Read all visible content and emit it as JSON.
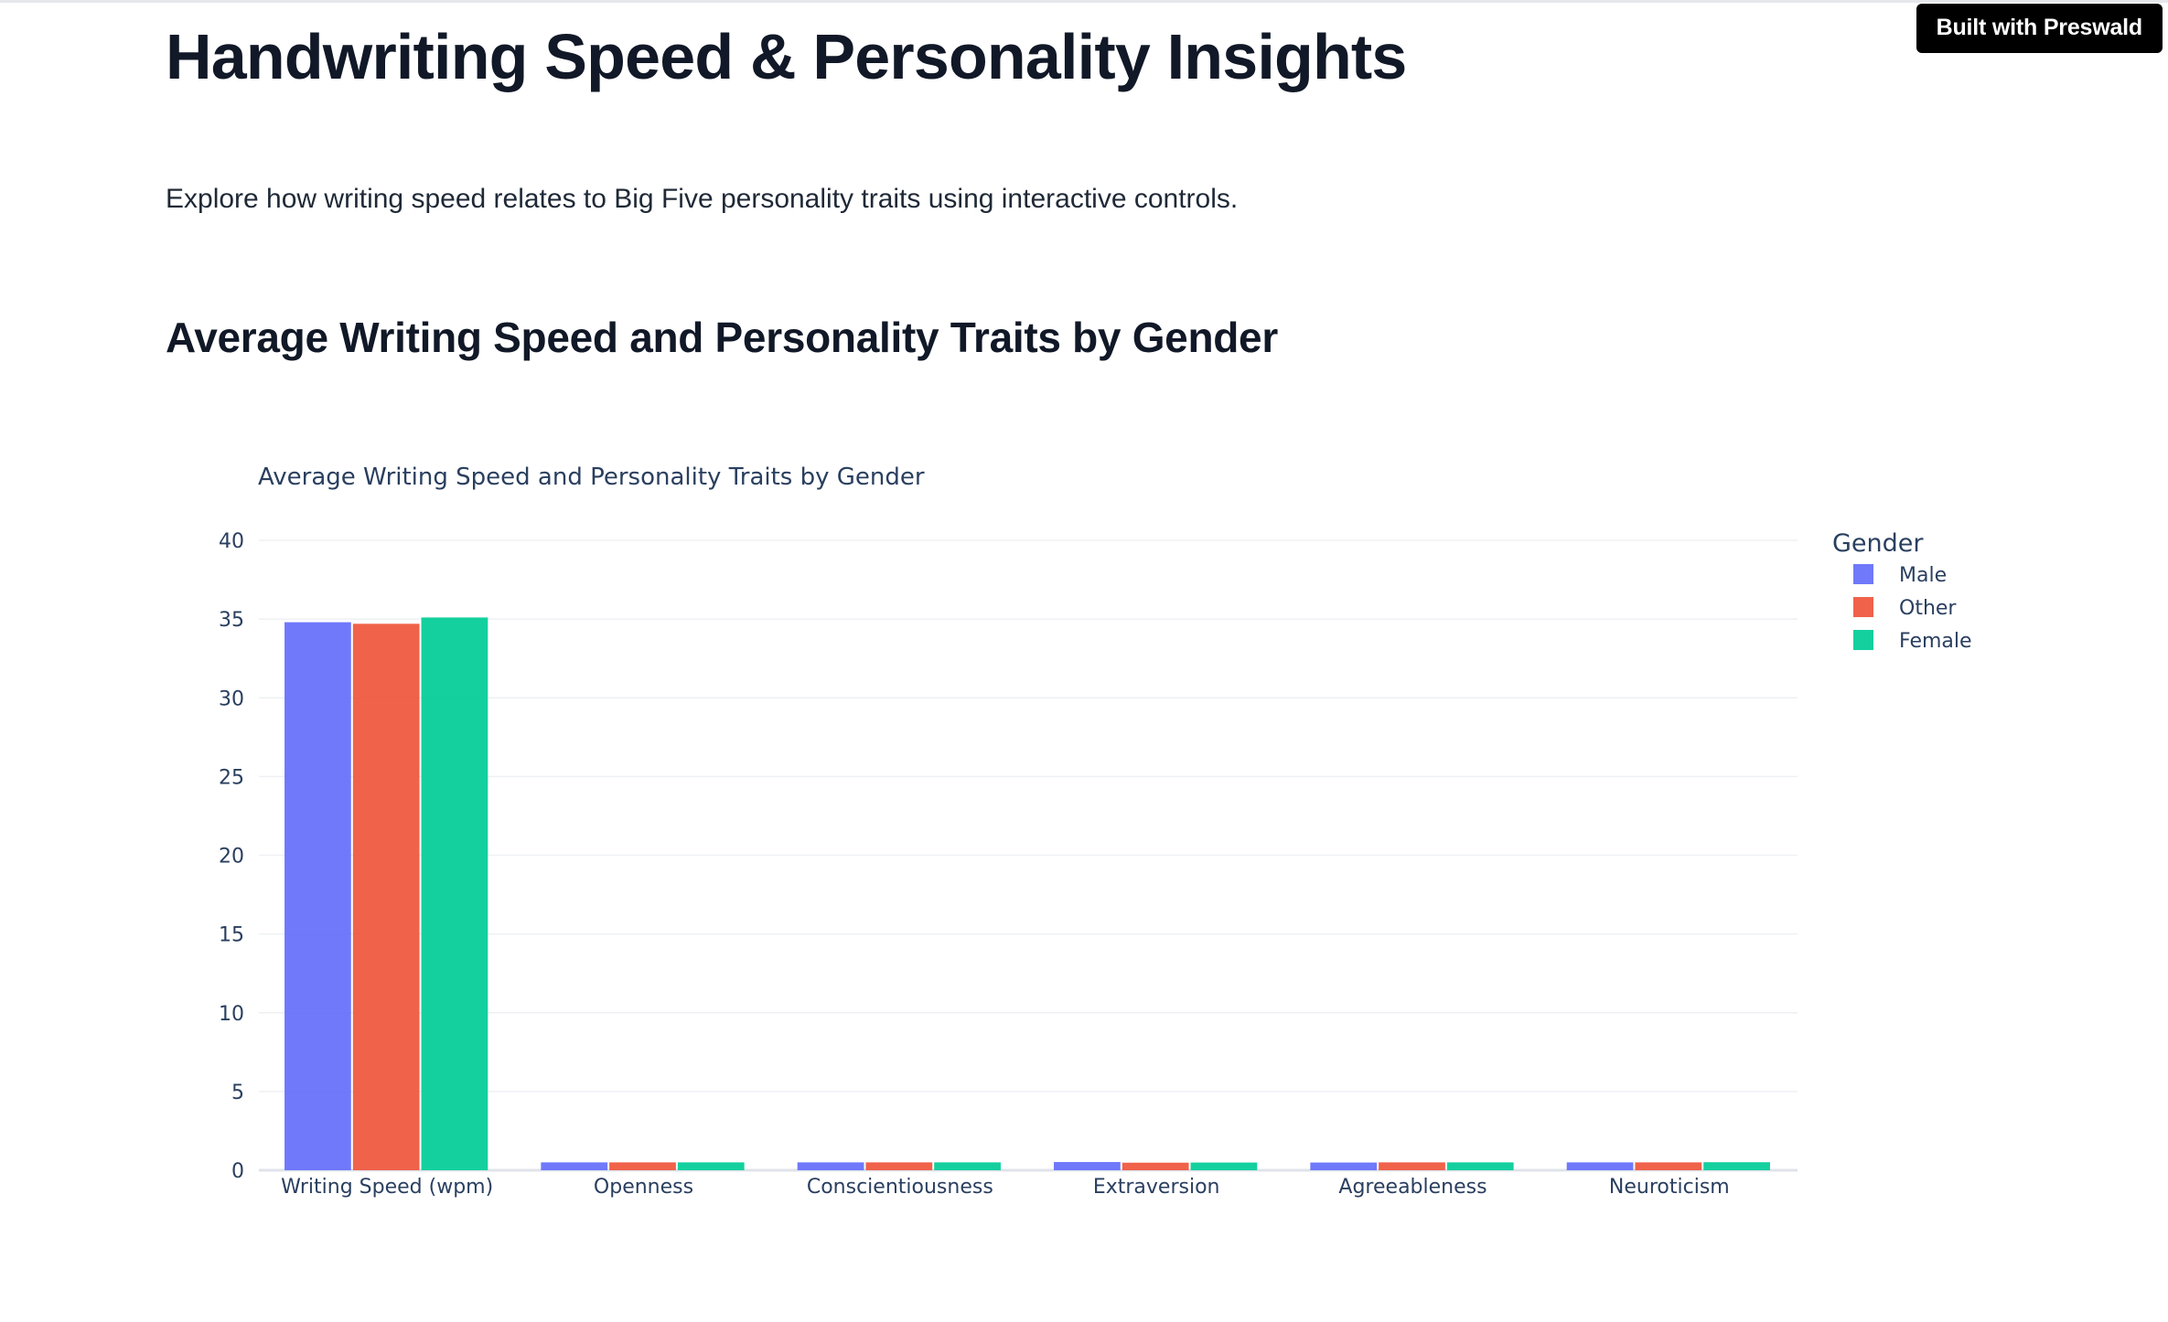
{
  "badge": {
    "label": "Built with Preswald"
  },
  "header": {
    "title": "Handwriting Speed & Personality Insights",
    "description": "Explore how writing speed relates to Big Five personality traits using interactive controls."
  },
  "section": {
    "title": "Average Writing Speed and Personality Traits by Gender"
  },
  "chart_data": {
    "type": "bar",
    "title": "Average Writing Speed and Personality Traits by Gender",
    "xlabel": "",
    "ylabel": "",
    "categories": [
      "Writing Speed (wpm)",
      "Openness",
      "Conscientiousness",
      "Extraversion",
      "Agreeableness",
      "Neuroticism"
    ],
    "series": [
      {
        "name": "Male",
        "color": "#636efa",
        "values": [
          34.8,
          0.5,
          0.5,
          0.52,
          0.49,
          0.5
        ]
      },
      {
        "name": "Other",
        "color": "#ef553b",
        "values": [
          34.7,
          0.5,
          0.5,
          0.48,
          0.5,
          0.5
        ]
      },
      {
        "name": "Female",
        "color": "#00cc96",
        "values": [
          35.1,
          0.5,
          0.5,
          0.49,
          0.5,
          0.51
        ]
      }
    ],
    "ylim": [
      0,
      40
    ],
    "yticks": [
      0,
      5,
      10,
      15,
      20,
      25,
      30,
      35,
      40
    ],
    "grid": true,
    "legend": {
      "title": "Gender",
      "placement": "top-right"
    }
  }
}
